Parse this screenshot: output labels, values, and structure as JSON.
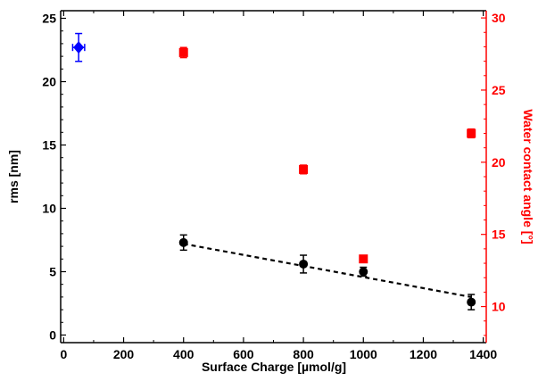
{
  "chart_data": {
    "type": "scatter",
    "title": "",
    "xlabel": "Surface Charge [µmol/g]",
    "ylabel": "rms [nm]",
    "y2label": "Water contact angle [°]",
    "xlim": [
      -10,
      1410
    ],
    "ylim": [
      -0.6,
      25.6
    ],
    "y2lim": [
      7.5,
      30.5
    ],
    "xticks": [
      0,
      200,
      400,
      600,
      800,
      1000,
      1200,
      1400
    ],
    "yticks": [
      0,
      5,
      10,
      15,
      20,
      25
    ],
    "y2ticks": [
      10,
      15,
      20,
      25,
      30
    ],
    "grid": false,
    "colors": {
      "rms": "#000000",
      "contact_angle": "#ff0000",
      "reference": "#0000ff",
      "axis_right": "#ff0000"
    },
    "series": [
      {
        "axis": "left",
        "marker": "circle",
        "color": "#000000",
        "x": [
          400,
          800,
          1000,
          1360
        ],
        "y": [
          7.3,
          5.6,
          5.0,
          2.6
        ],
        "err": [
          0.6,
          0.7,
          0.35,
          0.6
        ]
      },
      {
        "axis": "left",
        "marker": "diamond",
        "color": "#0000ff",
        "x": [
          50
        ],
        "y": [
          22.7
        ],
        "err": [
          1.1
        ],
        "xerr": [
          20
        ]
      },
      {
        "axis": "right",
        "marker": "square",
        "color": "#ff0000",
        "x": [
          400,
          800,
          1000,
          1360
        ],
        "y": [
          27.6,
          19.5,
          13.3,
          22.0
        ],
        "err": [
          0.35,
          0.3,
          0.2,
          0.3
        ]
      }
    ],
    "fit_line": {
      "x": [
        400,
        1360
      ],
      "y": [
        7.2,
        3.0
      ],
      "style": "dashed",
      "color": "#000000"
    }
  }
}
